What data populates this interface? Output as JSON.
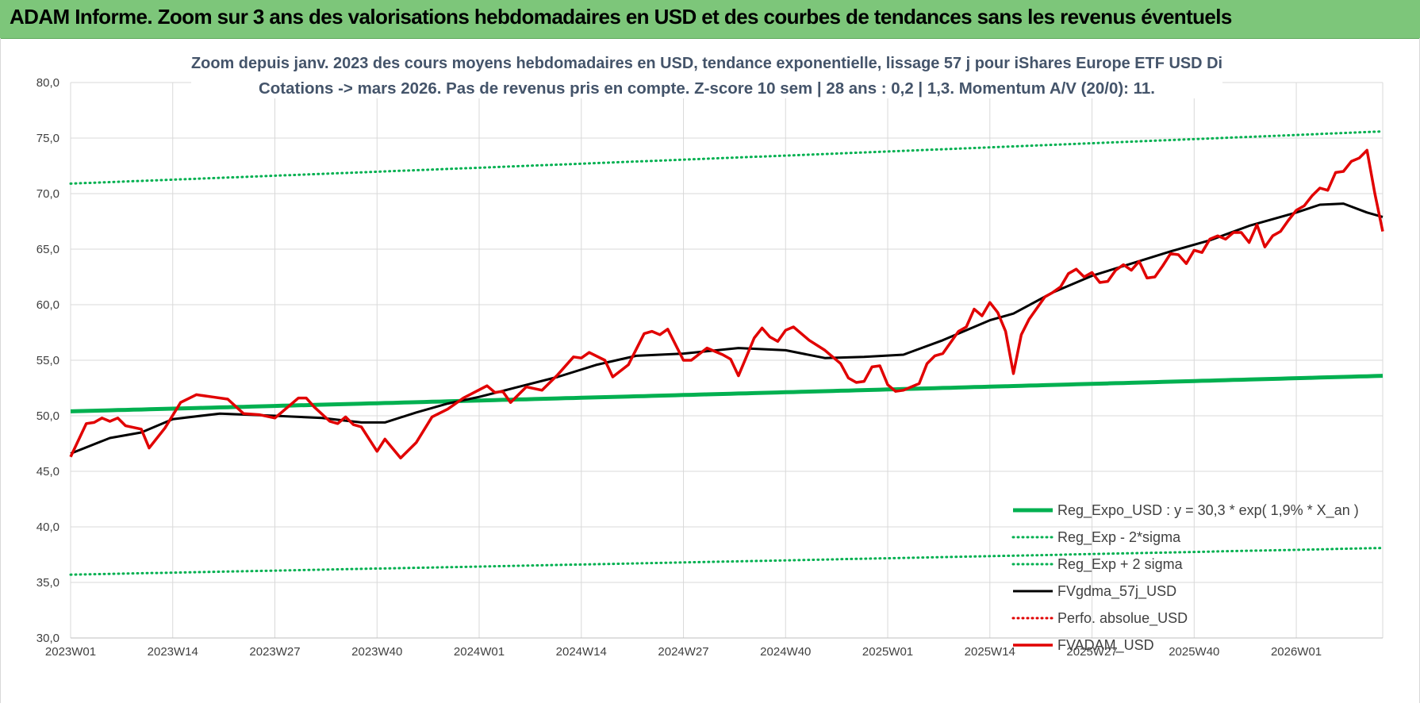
{
  "banner": {
    "title": "ADAM Informe. Zoom sur 3 ans des valorisations hebdomadaires en USD et des courbes de tendances sans les revenus éventuels"
  },
  "colors": {
    "banner_bg": "#7dc67a",
    "trend_green": "#00b050",
    "sigma_green": "#00b050",
    "smoothing_black": "#000000",
    "price_red": "#e10000",
    "perf_red": "#e10000",
    "grid": "#d9d9d9",
    "axis_text": "#404040",
    "title_text": "#44546a"
  },
  "chart_data": {
    "type": "line",
    "title": "Zoom depuis janv. 2023 des cours moyens hebdomadaires en USD, tendance exponentielle, lissage 57 j pour iShares Europe ETF USD Di",
    "subtitle": "Cotations -> mars 2026. Pas de revenus pris en compte. Z-score 10 sem | 28 ans : 0,2 | 1,3. Momentum A/V (20/0): 11.",
    "xlabel": "",
    "ylabel": "",
    "ylim": [
      30,
      80
    ],
    "yticks": [
      "30,0",
      "35,0",
      "40,0",
      "45,0",
      "50,0",
      "55,0",
      "60,0",
      "65,0",
      "70,0",
      "75,0",
      "80,0"
    ],
    "xticks": [
      "2023W01",
      "2023W14",
      "2023W27",
      "2023W40",
      "2024W01",
      "2024W14",
      "2024W27",
      "2024W40",
      "2025W01",
      "2025W14",
      "2025W27",
      "2025W40",
      "2026W01"
    ],
    "x_start": "2023W01",
    "x_end": "2026W12",
    "grid": true,
    "legend_position": "bottom-right",
    "series": [
      {
        "name": "Reg_Expo_USD : y = 30,3 * exp( 1,9% *  X_an )",
        "style": "solid-thick",
        "color": "#00b050",
        "points": [
          [
            "2023W01",
            50.4
          ],
          [
            "2026W12",
            53.6
          ]
        ]
      },
      {
        "name": "Reg_Exp - 2*sigma",
        "style": "dotted",
        "color": "#00b050",
        "points": [
          [
            "2023W01",
            35.7
          ],
          [
            "2026W12",
            38.1
          ]
        ]
      },
      {
        "name": "Reg_Exp + 2 sigma",
        "style": "dotted",
        "color": "#00b050",
        "points": [
          [
            "2023W01",
            70.9
          ],
          [
            "2026W12",
            75.6
          ]
        ]
      },
      {
        "name": "FVgdma_57j_USD",
        "style": "solid",
        "color": "#000000",
        "points": [
          [
            "2023W01",
            46.6
          ],
          [
            "2023W06",
            48.0
          ],
          [
            "2023W10",
            48.5
          ],
          [
            "2023W14",
            49.7
          ],
          [
            "2023W20",
            50.2
          ],
          [
            "2023W27",
            50.0
          ],
          [
            "2023W33",
            49.8
          ],
          [
            "2023W38",
            49.4
          ],
          [
            "2023W41",
            49.4
          ],
          [
            "2023W45",
            50.3
          ],
          [
            "2023W49",
            51.1
          ],
          [
            "2024W01",
            51.7
          ],
          [
            "2024W06",
            52.6
          ],
          [
            "2024W11",
            53.5
          ],
          [
            "2024W16",
            54.6
          ],
          [
            "2024W21",
            55.4
          ],
          [
            "2024W27",
            55.6
          ],
          [
            "2024W34",
            56.1
          ],
          [
            "2024W40",
            55.9
          ],
          [
            "2024W45",
            55.2
          ],
          [
            "2024W50",
            55.3
          ],
          [
            "2025W03",
            55.5
          ],
          [
            "2025W08",
            56.8
          ],
          [
            "2025W14",
            58.6
          ],
          [
            "2025W17",
            59.2
          ],
          [
            "2025W22",
            61.1
          ],
          [
            "2025W27",
            62.6
          ],
          [
            "2025W32",
            63.7
          ],
          [
            "2025W37",
            64.8
          ],
          [
            "2025W42",
            65.8
          ],
          [
            "2025W47",
            67.1
          ],
          [
            "2026W01",
            68.3
          ],
          [
            "2026W04",
            69.0
          ],
          [
            "2026W07",
            69.1
          ],
          [
            "2026W10",
            68.3
          ],
          [
            "2026W12",
            67.9
          ]
        ]
      },
      {
        "name": "Perfo. absolue_USD",
        "style": "dotted",
        "color": "#e10000",
        "points": []
      },
      {
        "name": "FVADAM_USD",
        "style": "solid-thick",
        "color": "#e10000",
        "points": [
          [
            "2023W01",
            46.3
          ],
          [
            "2023W03",
            49.3
          ],
          [
            "2023W04",
            49.4
          ],
          [
            "2023W05",
            49.8
          ],
          [
            "2023W06",
            49.5
          ],
          [
            "2023W07",
            49.8
          ],
          [
            "2023W08",
            49.1
          ],
          [
            "2023W10",
            48.8
          ],
          [
            "2023W11",
            47.1
          ],
          [
            "2023W13",
            48.9
          ],
          [
            "2023W15",
            51.2
          ],
          [
            "2023W17",
            51.9
          ],
          [
            "2023W19",
            51.7
          ],
          [
            "2023W21",
            51.5
          ],
          [
            "2023W23",
            50.2
          ],
          [
            "2023W25",
            50.1
          ],
          [
            "2023W27",
            49.8
          ],
          [
            "2023W28",
            50.4
          ],
          [
            "2023W30",
            51.6
          ],
          [
            "2023W31",
            51.6
          ],
          [
            "2023W32",
            50.8
          ],
          [
            "2023W34",
            49.5
          ],
          [
            "2023W35",
            49.3
          ],
          [
            "2023W36",
            49.9
          ],
          [
            "2023W37",
            49.2
          ],
          [
            "2023W38",
            49.0
          ],
          [
            "2023W39",
            47.9
          ],
          [
            "2023W40",
            46.8
          ],
          [
            "2023W41",
            47.9
          ],
          [
            "2023W43",
            46.2
          ],
          [
            "2023W45",
            47.6
          ],
          [
            "2023W47",
            49.9
          ],
          [
            "2023W49",
            50.6
          ],
          [
            "2023W51",
            51.6
          ],
          [
            "2024W02",
            52.7
          ],
          [
            "2024W03",
            52.1
          ],
          [
            "2024W04",
            52.2
          ],
          [
            "2024W05",
            51.2
          ],
          [
            "2024W07",
            52.6
          ],
          [
            "2024W09",
            52.3
          ],
          [
            "2024W11",
            53.7
          ],
          [
            "2024W13",
            55.3
          ],
          [
            "2024W14",
            55.2
          ],
          [
            "2024W15",
            55.7
          ],
          [
            "2024W17",
            55.0
          ],
          [
            "2024W18",
            53.5
          ],
          [
            "2024W20",
            54.6
          ],
          [
            "2024W22",
            57.4
          ],
          [
            "2024W23",
            57.6
          ],
          [
            "2024W24",
            57.3
          ],
          [
            "2024W25",
            57.8
          ],
          [
            "2024W27",
            55.0
          ],
          [
            "2024W28",
            55.0
          ],
          [
            "2024W30",
            56.1
          ],
          [
            "2024W32",
            55.5
          ],
          [
            "2024W33",
            55.1
          ],
          [
            "2024W34",
            53.6
          ],
          [
            "2024W35",
            55.3
          ],
          [
            "2024W36",
            57.0
          ],
          [
            "2024W37",
            57.9
          ],
          [
            "2024W38",
            57.1
          ],
          [
            "2024W39",
            56.7
          ],
          [
            "2024W40",
            57.7
          ],
          [
            "2024W41",
            58.0
          ],
          [
            "2024W43",
            56.8
          ],
          [
            "2024W45",
            55.9
          ],
          [
            "2024W47",
            54.7
          ],
          [
            "2024W48",
            53.4
          ],
          [
            "2024W49",
            53.0
          ],
          [
            "2024W50",
            53.1
          ],
          [
            "2024W51",
            54.4
          ],
          [
            "2024W52",
            54.5
          ],
          [
            "2025W01",
            52.8
          ],
          [
            "2025W02",
            52.2
          ],
          [
            "2025W03",
            52.3
          ],
          [
            "2025W04",
            52.6
          ],
          [
            "2025W05",
            52.9
          ],
          [
            "2025W06",
            54.7
          ],
          [
            "2025W07",
            55.4
          ],
          [
            "2025W08",
            55.6
          ],
          [
            "2025W10",
            57.6
          ],
          [
            "2025W11",
            58.0
          ],
          [
            "2025W12",
            59.6
          ],
          [
            "2025W13",
            59.0
          ],
          [
            "2025W14",
            60.2
          ],
          [
            "2025W15",
            59.3
          ],
          [
            "2025W16",
            57.6
          ],
          [
            "2025W17",
            53.8
          ],
          [
            "2025W18",
            57.3
          ],
          [
            "2025W19",
            58.7
          ],
          [
            "2025W21",
            60.7
          ],
          [
            "2025W22",
            61.1
          ],
          [
            "2025W23",
            61.6
          ],
          [
            "2025W24",
            62.8
          ],
          [
            "2025W25",
            63.2
          ],
          [
            "2025W26",
            62.5
          ],
          [
            "2025W27",
            62.9
          ],
          [
            "2025W28",
            62.0
          ],
          [
            "2025W29",
            62.1
          ],
          [
            "2025W30",
            63.1
          ],
          [
            "2025W31",
            63.6
          ],
          [
            "2025W32",
            63.1
          ],
          [
            "2025W33",
            63.9
          ],
          [
            "2025W34",
            62.4
          ],
          [
            "2025W35",
            62.5
          ],
          [
            "2025W36",
            63.5
          ],
          [
            "2025W37",
            64.6
          ],
          [
            "2025W38",
            64.5
          ],
          [
            "2025W39",
            63.7
          ],
          [
            "2025W40",
            64.9
          ],
          [
            "2025W41",
            64.7
          ],
          [
            "2025W42",
            65.9
          ],
          [
            "2025W43",
            66.2
          ],
          [
            "2025W44",
            65.9
          ],
          [
            "2025W45",
            66.5
          ],
          [
            "2025W46",
            66.5
          ],
          [
            "2025W47",
            65.6
          ],
          [
            "2025W48",
            67.2
          ],
          [
            "2025W49",
            65.2
          ],
          [
            "2025W50",
            66.2
          ],
          [
            "2025W51",
            66.6
          ],
          [
            "2025W52",
            67.6
          ],
          [
            "2026W01",
            68.5
          ],
          [
            "2026W02",
            68.9
          ],
          [
            "2026W03",
            69.8
          ],
          [
            "2026W04",
            70.5
          ],
          [
            "2026W05",
            70.3
          ],
          [
            "2026W06",
            71.9
          ],
          [
            "2026W07",
            72.0
          ],
          [
            "2026W08",
            72.9
          ],
          [
            "2026W09",
            73.2
          ],
          [
            "2026W10",
            73.9
          ],
          [
            "2026W11",
            70.0
          ],
          [
            "2026W12",
            66.6
          ]
        ]
      }
    ]
  }
}
